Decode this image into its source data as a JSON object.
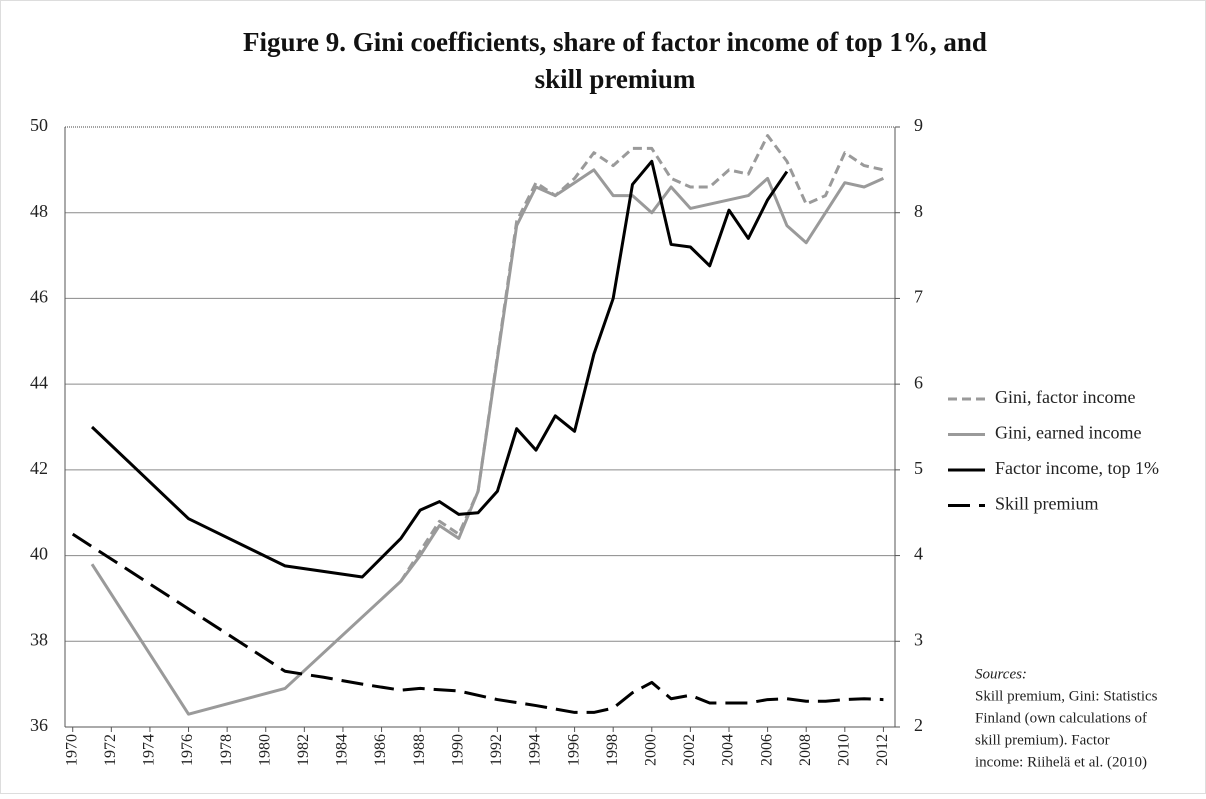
{
  "chart_data": {
    "type": "line",
    "title": [
      "Figure 9. Gini coefficients, share of  factor income of  top 1%, and",
      "skill premium"
    ],
    "xlim": [
      1969.6,
      2012.6
    ],
    "xticks": [
      1970,
      1972,
      1974,
      1976,
      1978,
      1980,
      1982,
      1984,
      1986,
      1988,
      1990,
      1992,
      1994,
      1996,
      1998,
      2000,
      2002,
      2004,
      2006,
      2008,
      2010,
      2012
    ],
    "ylim": [
      36,
      50
    ],
    "yticks": [
      36,
      38,
      40,
      42,
      44,
      46,
      48,
      50
    ],
    "y2lim": [
      2,
      9
    ],
    "y2ticks": [
      2,
      3,
      4,
      5,
      6,
      7,
      8,
      9
    ],
    "grid": true,
    "legend": "right",
    "series": [
      {
        "name": "Gini, factor income",
        "color": "#9a9a9a",
        "line_style": "dashed",
        "x": [
          1987,
          1988,
          1989,
          1990,
          1991,
          1993,
          1994,
          1995,
          1996,
          1997,
          1998,
          1999,
          2000,
          2001,
          2002,
          2003,
          2004,
          2005,
          2006,
          2007,
          2008,
          2009,
          2010,
          2011,
          2012
        ],
        "values": [
          39.4,
          40.1,
          40.8,
          40.5,
          41.5,
          47.8,
          48.7,
          48.4,
          48.8,
          49.4,
          49.1,
          49.5,
          49.5,
          48.8,
          48.6,
          48.6,
          49.0,
          48.9,
          49.8,
          49.2,
          48.2,
          48.4,
          49.4,
          49.1,
          49.0
        ]
      },
      {
        "name": "Gini, earned income",
        "color": "#9a9a9a",
        "line_style": "solid",
        "x": [
          1971,
          1976,
          1981,
          1987,
          1988,
          1989,
          1990,
          1991,
          1993,
          1994,
          1995,
          1997,
          1998,
          1999,
          2000,
          2001,
          2002,
          2005,
          2006,
          2007,
          2008,
          2010,
          2011,
          2012
        ],
        "values": [
          39.8,
          36.3,
          36.9,
          39.4,
          40.0,
          40.7,
          40.4,
          41.5,
          47.7,
          48.6,
          48.4,
          49.0,
          48.4,
          48.4,
          48.0,
          48.6,
          48.1,
          48.4,
          48.8,
          47.7,
          47.3,
          48.7,
          48.6,
          48.8
        ]
      },
      {
        "name": "Factor income, top 1%",
        "color": "#000000",
        "line_style": "solid",
        "axis": "y2",
        "x": [
          1971,
          1976,
          1981,
          1985,
          1987,
          1988,
          1989,
          1990,
          1991,
          1992,
          1993,
          1994,
          1995,
          1996,
          1997,
          1998,
          1999,
          2000,
          2001,
          2002,
          2003,
          2004,
          2005,
          2006,
          2007
        ],
        "values": [
          5.5,
          4.43,
          3.88,
          3.75,
          4.2,
          4.53,
          4.63,
          4.48,
          4.5,
          4.75,
          5.48,
          5.23,
          5.63,
          5.45,
          6.35,
          7.0,
          8.33,
          8.6,
          7.63,
          7.6,
          7.38,
          8.03,
          7.7,
          8.15,
          8.48
        ]
      },
      {
        "name": "Skill premium",
        "color": "#000000",
        "line_style": "long-dash",
        "axis": "y2",
        "x": [
          1970,
          1981,
          1983,
          1985,
          1987,
          1988,
          1990,
          1992,
          1994,
          1996,
          1997,
          1998,
          1999,
          2000,
          2001,
          2002,
          2003,
          2005,
          2006,
          2007,
          2008,
          2009,
          2010,
          2011,
          2012
        ],
        "values": [
          4.25,
          2.65,
          2.58,
          2.5,
          2.43,
          2.45,
          2.42,
          2.32,
          2.25,
          2.17,
          2.17,
          2.22,
          2.4,
          2.52,
          2.33,
          2.37,
          2.28,
          2.28,
          2.32,
          2.33,
          2.3,
          2.3,
          2.32,
          2.33,
          2.32
        ]
      }
    ],
    "annotation": [
      "Sources:",
      "Skill premium, Gini: Statistics",
      "Finland (own calculations of",
      "skill premium). Factor",
      "income: Riihelä et al. (2010)"
    ]
  }
}
